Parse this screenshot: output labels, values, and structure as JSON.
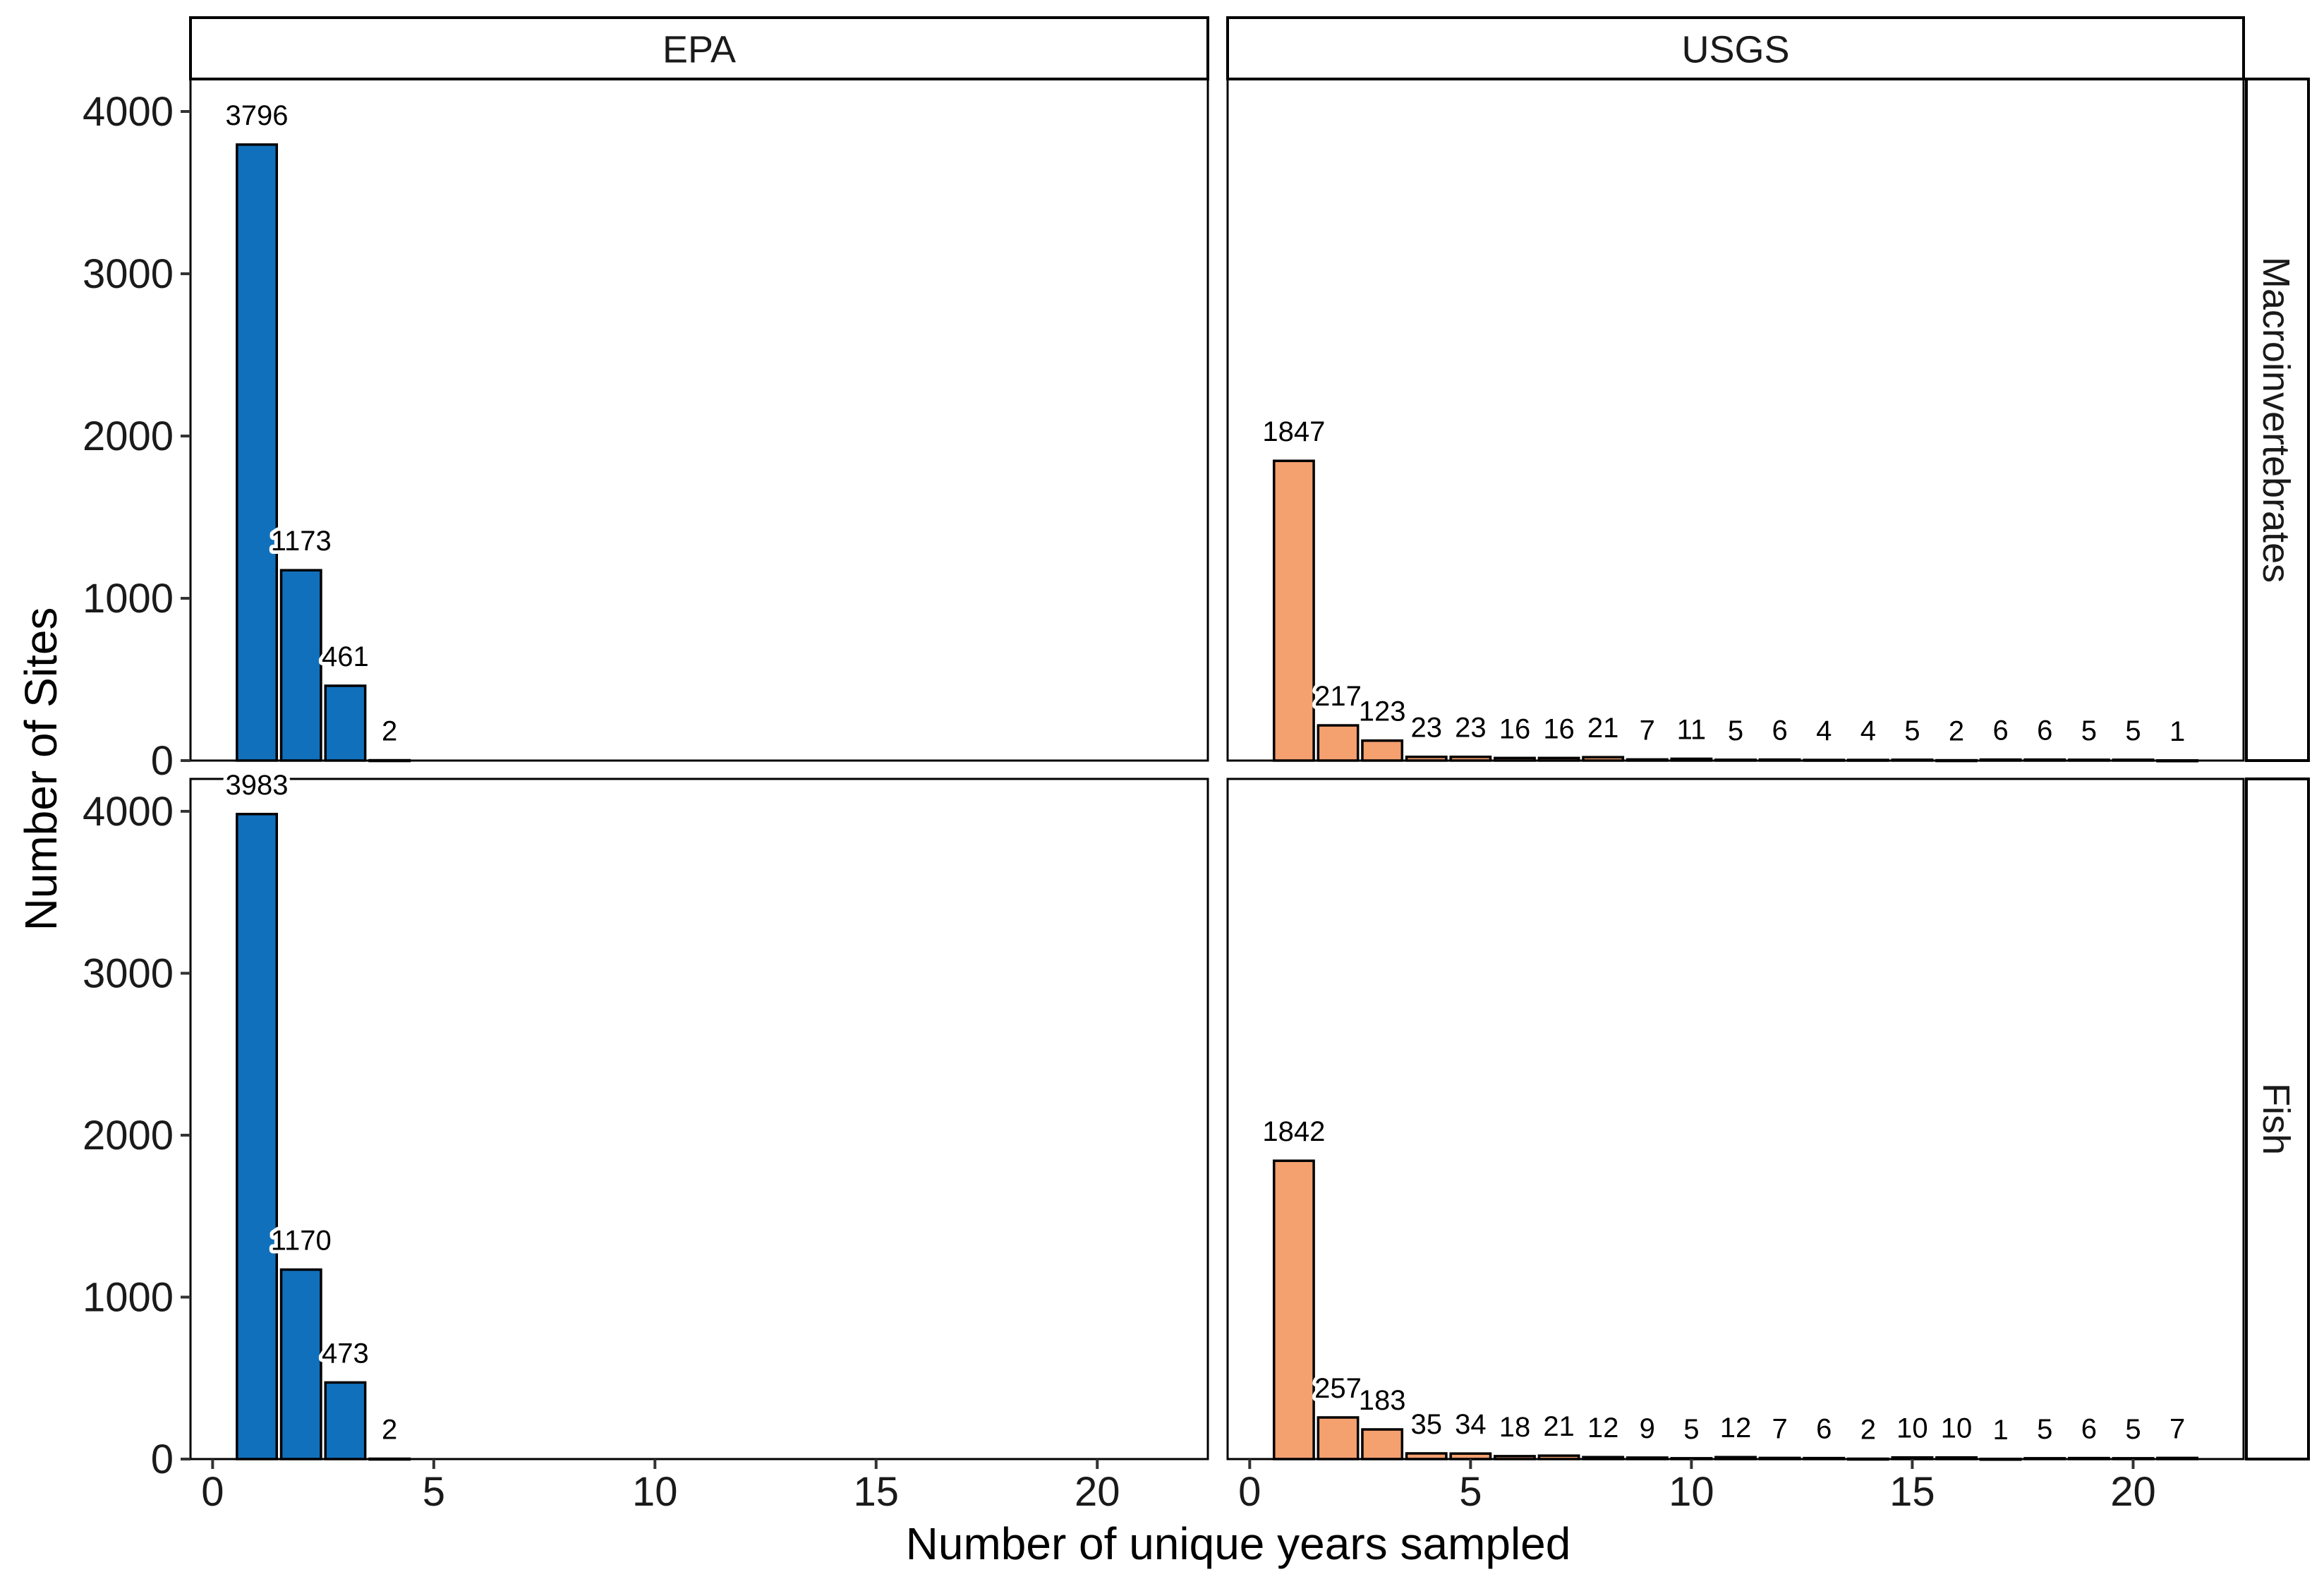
{
  "chart_data": {
    "type": "bar",
    "title": "",
    "xlabel": "Number of unique years sampled",
    "ylabel": "Number of Sites",
    "xlim": [
      -0.5,
      22.5
    ],
    "ylim": [
      0,
      4200
    ],
    "x_ticks": [
      0,
      5,
      10,
      15,
      20
    ],
    "y_ticks": [
      0,
      1000,
      2000,
      3000,
      4000
    ],
    "grid": false,
    "legend": "none",
    "column_facets": [
      "EPA",
      "USGS"
    ],
    "row_facets": [
      "Macroinvertebrates",
      "Fish"
    ],
    "colors": {
      "EPA": "#1170bb",
      "USGS": "#f4a06f",
      "bar_outline": "#000000"
    },
    "panels": [
      {
        "source": "EPA",
        "group": "Macroinvertebrates",
        "x": [
          1,
          2,
          3,
          4
        ],
        "values": [
          3796,
          1173,
          461,
          2
        ]
      },
      {
        "source": "USGS",
        "group": "Macroinvertebrates",
        "x": [
          1,
          2,
          3,
          4,
          5,
          6,
          7,
          8,
          9,
          10,
          11,
          12,
          13,
          14,
          15,
          16,
          17,
          18,
          19,
          20,
          21
        ],
        "values": [
          1847,
          217,
          123,
          23,
          23,
          16,
          16,
          21,
          7,
          11,
          5,
          6,
          4,
          4,
          5,
          2,
          6,
          6,
          5,
          5,
          1
        ]
      },
      {
        "source": "EPA",
        "group": "Fish",
        "x": [
          1,
          2,
          3,
          4
        ],
        "values": [
          3983,
          1170,
          473,
          2
        ]
      },
      {
        "source": "USGS",
        "group": "Fish",
        "x": [
          1,
          2,
          3,
          4,
          5,
          6,
          7,
          8,
          9,
          10,
          11,
          12,
          13,
          14,
          15,
          16,
          17,
          18,
          19,
          20,
          21
        ],
        "values": [
          1842,
          257,
          183,
          35,
          34,
          18,
          21,
          12,
          9,
          5,
          12,
          7,
          6,
          2,
          10,
          10,
          1,
          5,
          6,
          5,
          7
        ]
      }
    ]
  }
}
